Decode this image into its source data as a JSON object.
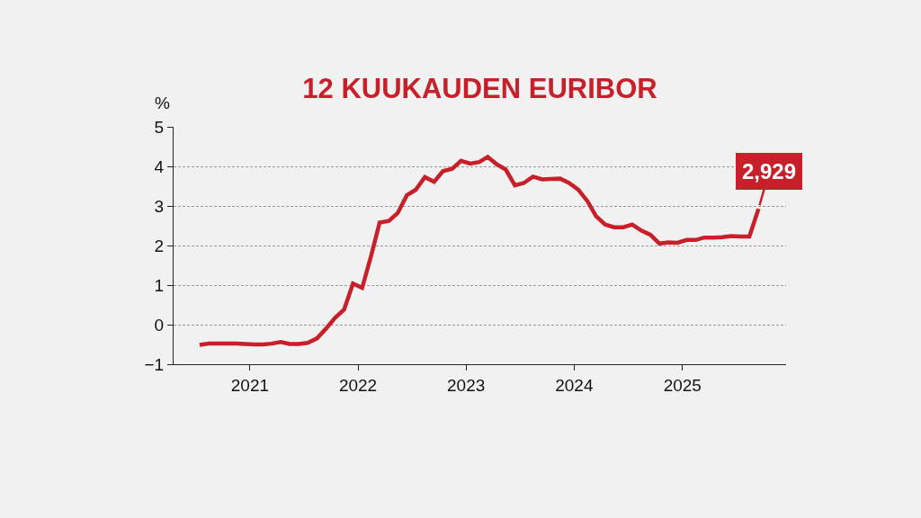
{
  "chart_data": {
    "type": "line",
    "title": "12 KUUKAUDEN EURIBOR",
    "ylabel": "%",
    "x": [
      "2020-07-15",
      "2020-08-15",
      "2020-09-15",
      "2020-10-15",
      "2020-11-15",
      "2020-12-15",
      "2021-01-15",
      "2021-02-15",
      "2021-03-15",
      "2021-04-15",
      "2021-05-15",
      "2021-06-15",
      "2021-07-15",
      "2021-08-15",
      "2021-09-15",
      "2021-10-15",
      "2021-11-15",
      "2021-12-15",
      "2022-01-15",
      "2022-02-15",
      "2022-03-15",
      "2022-04-15",
      "2022-05-15",
      "2022-06-15",
      "2022-07-15",
      "2022-08-15",
      "2022-09-15",
      "2022-10-15",
      "2022-11-15",
      "2022-12-15",
      "2023-01-15",
      "2023-02-15",
      "2023-03-15",
      "2023-04-15",
      "2023-05-15",
      "2023-06-15",
      "2023-07-15",
      "2023-08-15",
      "2023-09-15",
      "2023-10-15",
      "2023-11-15",
      "2023-12-15",
      "2024-01-15",
      "2024-02-15",
      "2024-03-15",
      "2024-04-15",
      "2024-05-15",
      "2024-06-15",
      "2024-07-15",
      "2024-08-15",
      "2024-09-15",
      "2024-10-15",
      "2024-11-15",
      "2024-12-15",
      "2025-01-15",
      "2025-02-15",
      "2025-03-15",
      "2025-04-15",
      "2025-05-15",
      "2025-06-15",
      "2025-07-15",
      "2025-08-15",
      "2025-09-15"
    ],
    "series": [
      {
        "color": "#c8202a",
        "values": [
          -0.51,
          -0.48,
          -0.48,
          -0.48,
          -0.48,
          -0.49,
          -0.5,
          -0.5,
          -0.48,
          -0.44,
          -0.49,
          -0.49,
          -0.46,
          -0.35,
          -0.1,
          0.17,
          0.38,
          1.04,
          0.93,
          1.76,
          2.58,
          2.62,
          2.82,
          3.27,
          3.41,
          3.73,
          3.61,
          3.88,
          3.94,
          4.14,
          4.07,
          4.11,
          4.24,
          4.05,
          3.92,
          3.52,
          3.58,
          3.74,
          3.67,
          3.68,
          3.69,
          3.58,
          3.41,
          3.12,
          2.74,
          2.53,
          2.46,
          2.46,
          2.53,
          2.38,
          2.27,
          2.05,
          2.08,
          2.07,
          2.14,
          2.14,
          2.2,
          2.2,
          2.21,
          2.24,
          2.23,
          2.23,
          2.929
        ]
      }
    ],
    "xlim": [
      "2020-04-18",
      "2025-12-17"
    ],
    "xticks": [
      {
        "value": "2021-01-01",
        "label": "2021"
      },
      {
        "value": "2022-01-01",
        "label": "2022"
      },
      {
        "value": "2023-01-01",
        "label": "2023"
      },
      {
        "value": "2024-01-01",
        "label": "2024"
      },
      {
        "value": "2025-01-01",
        "label": "2025"
      }
    ],
    "ylim": [
      -1,
      5
    ],
    "yticks": [
      {
        "value": -1,
        "label": "−1"
      },
      0,
      1,
      2,
      3,
      4,
      5
    ],
    "grid": "y",
    "marker": "none",
    "line_style": "solid",
    "annotations": [
      {
        "text": "2,929",
        "x": "2025-09-15",
        "y": 2.929
      }
    ]
  }
}
